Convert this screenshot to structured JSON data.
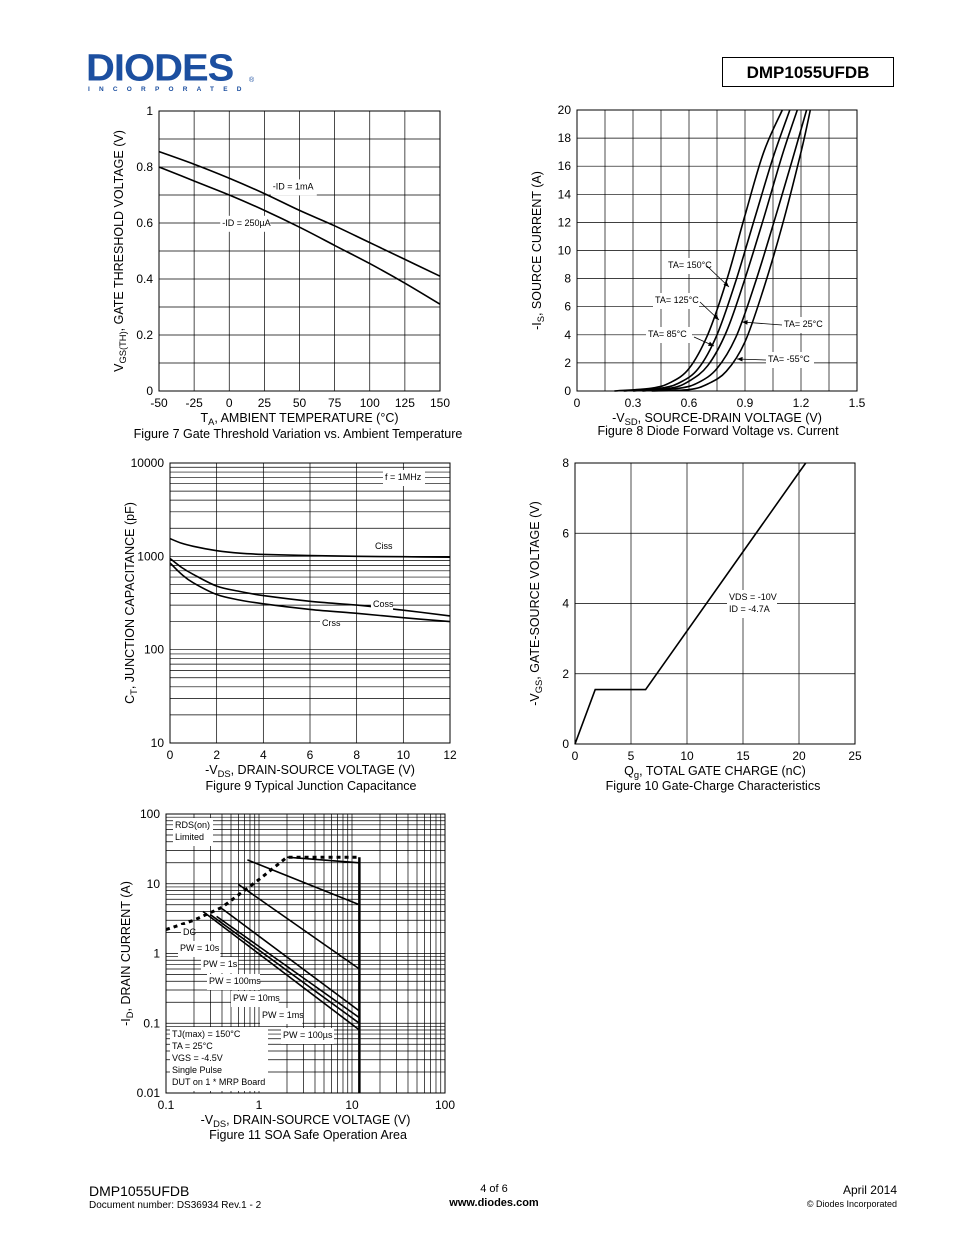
{
  "header": {
    "logo_text": "DIODES",
    "logo_subtitle": "INCORPORATED",
    "logo_reg": "®",
    "part_number": "DMP1055UFDB"
  },
  "footer": {
    "part_number": "DMP1055UFDB",
    "document_number": "Document number: DS36934 Rev.1 - 2",
    "page": "4 of 6",
    "website": "www.diodes.com",
    "date": "April 2014",
    "copyright": "© Diodes Incorporated"
  },
  "figures": {
    "fig7_caption": "Figure 7 Gate Threshold Variation vs. Ambient Temperature",
    "fig8_caption": "Figure 8 Diode Forward Voltage vs. Current",
    "fig9_caption": "Figure 9 Typical Junction Capacitance",
    "fig10_caption": "Figure 10 Gate-Charge Characteristics",
    "fig11_caption": "Figure 11 SOA Safe Operation Area"
  },
  "chart_data": [
    {
      "id": "fig7",
      "type": "line",
      "xlabel": "TA, AMBIENT TEMPERATURE (°C)",
      "ylabel": "VGS(TH), GATE THRESHOLD VOLTAGE (V)",
      "xlim": [
        -50,
        150
      ],
      "ylim": [
        0,
        1
      ],
      "xticks": [
        "-50",
        "-25",
        "0",
        "25",
        "50",
        "75",
        "100",
        "125",
        "150"
      ],
      "yticks": [
        "0",
        "0.2",
        "0.4",
        "0.6",
        "0.8",
        "1"
      ],
      "grid": true,
      "series": [
        {
          "name": "-ID = 1mA",
          "x": [
            -50,
            -25,
            0,
            25,
            50,
            75,
            100,
            125,
            150
          ],
          "y": [
            0.855,
            0.81,
            0.76,
            0.705,
            0.645,
            0.59,
            0.53,
            0.47,
            0.41
          ]
        },
        {
          "name": "-ID = 250µA",
          "x": [
            -50,
            -25,
            0,
            25,
            50,
            75,
            100,
            125,
            150
          ],
          "y": [
            0.8,
            0.75,
            0.7,
            0.645,
            0.585,
            0.52,
            0.455,
            0.385,
            0.31
          ]
        }
      ]
    },
    {
      "id": "fig8",
      "type": "line",
      "xlabel": "-VSD, SOURCE-DRAIN VOLTAGE (V)",
      "ylabel": "-IS, SOURCE CURRENT (A)",
      "xlim": [
        0,
        1.5
      ],
      "ylim": [
        0,
        20
      ],
      "xticks": [
        "0",
        "0.3",
        "0.6",
        "0.9",
        "1.2",
        "1.5"
      ],
      "yticks": [
        "0",
        "2",
        "4",
        "6",
        "8",
        "10",
        "12",
        "14",
        "16",
        "18",
        "20"
      ],
      "grid": true,
      "series": [
        {
          "name": "TA= 150°C",
          "x": [
            0.2,
            0.4,
            0.5,
            0.6,
            0.7,
            0.8,
            0.9,
            1.0,
            1.1
          ],
          "y": [
            0,
            0.2,
            0.6,
            1.6,
            4.0,
            7.8,
            12.5,
            17.0,
            20
          ]
        },
        {
          "name": "TA= 125°C",
          "x": [
            0.25,
            0.45,
            0.55,
            0.65,
            0.75,
            0.85,
            0.95,
            1.05,
            1.14
          ],
          "y": [
            0,
            0.2,
            0.6,
            1.6,
            4.0,
            7.8,
            12.2,
            16.6,
            20
          ]
        },
        {
          "name": "TA= 85°C",
          "x": [
            0.3,
            0.5,
            0.6,
            0.7,
            0.8,
            0.9,
            1.0,
            1.1,
            1.18
          ],
          "y": [
            0,
            0.2,
            0.7,
            1.8,
            4.2,
            8.0,
            12.3,
            16.8,
            20
          ]
        },
        {
          "name": "TA= 25°C",
          "x": [
            0.35,
            0.55,
            0.65,
            0.75,
            0.85,
            0.95,
            1.05,
            1.15,
            1.23
          ],
          "y": [
            0,
            0.2,
            0.6,
            1.6,
            3.8,
            7.5,
            11.8,
            16.3,
            20
          ]
        },
        {
          "name": "TA= -55°C",
          "x": [
            0.4,
            0.6,
            0.7,
            0.8,
            0.9,
            1.0,
            1.1,
            1.2,
            1.25
          ],
          "y": [
            0,
            0.1,
            0.5,
            1.4,
            3.5,
            7.3,
            11.8,
            17.0,
            20
          ]
        }
      ]
    },
    {
      "id": "fig9",
      "type": "line",
      "xlabel": "-VDS, DRAIN-SOURCE VOLTAGE (V)",
      "ylabel": "CT, JUNCTION CAPACITANCE (pF)",
      "xlim": [
        0,
        12
      ],
      "ylim": [
        10,
        10000
      ],
      "yscale": "log",
      "xticks": [
        "0",
        "2",
        "4",
        "6",
        "8",
        "10",
        "12"
      ],
      "yticks": [
        "10",
        "100",
        "1000",
        "10000"
      ],
      "grid": true,
      "annotation": "f = 1MHz",
      "series": [
        {
          "name": "Ciss",
          "x": [
            0,
            0.5,
            1,
            2,
            3,
            4,
            6,
            8,
            10,
            12
          ],
          "y": [
            1550,
            1380,
            1280,
            1150,
            1080,
            1050,
            1020,
            1000,
            990,
            980
          ]
        },
        {
          "name": "Coss",
          "x": [
            0,
            0.5,
            1,
            2,
            3,
            4,
            6,
            8,
            10,
            12
          ],
          "y": [
            950,
            760,
            640,
            480,
            420,
            380,
            330,
            300,
            265,
            230
          ]
        },
        {
          "name": "Crss",
          "x": [
            0,
            0.5,
            1,
            2,
            3,
            4,
            6,
            8,
            10,
            12
          ],
          "y": [
            850,
            640,
            520,
            390,
            340,
            310,
            270,
            245,
            220,
            200
          ]
        }
      ]
    },
    {
      "id": "fig10",
      "type": "line",
      "xlabel": "Qg, TOTAL GATE CHARGE (nC)",
      "ylabel": "-VGS, GATE-SOURCE VOLTAGE (V)",
      "xlim": [
        0,
        25
      ],
      "ylim": [
        0,
        8
      ],
      "xticks": [
        "0",
        "5",
        "10",
        "15",
        "20",
        "25"
      ],
      "yticks": [
        "0",
        "2",
        "4",
        "6",
        "8"
      ],
      "grid": true,
      "annotation": [
        "VDS = -10V",
        "ID = -4.7A"
      ],
      "series": [
        {
          "name": "",
          "x": [
            0,
            1.8,
            6.3,
            20.6
          ],
          "y": [
            0,
            1.55,
            1.55,
            8
          ]
        }
      ]
    },
    {
      "id": "fig11",
      "type": "line",
      "xlabel": "-VDS, DRAIN-SOURCE VOLTAGE (V)",
      "ylabel": "-ID, DRAIN CURRENT (A)",
      "xlim": [
        0.1,
        100
      ],
      "ylim": [
        0.01,
        100
      ],
      "xscale": "log",
      "yscale": "log",
      "xticks": [
        "0.1",
        "1",
        "10",
        "100"
      ],
      "yticks": [
        "0.01",
        "0.1",
        "1",
        "10",
        "100"
      ],
      "grid": true,
      "legend_box_top": [
        "RDS(on)",
        "Limited"
      ],
      "legend_box_bottom": [
        "TJ(max) = 150°C",
        "TA = 25°C",
        "VGS = -4.5V",
        "Single Pulse",
        "DUT on 1 * MRP Board"
      ],
      "series": [
        {
          "name": "RDS(on) Limited",
          "x": [
            0.1,
            0.2,
            0.4,
            1.0,
            2.0,
            12
          ],
          "y": [
            2.2,
            3.0,
            4.6,
            11.5,
            24,
            24
          ]
        },
        {
          "name": "DC",
          "x": [
            0.25,
            12
          ],
          "y": [
            4.0,
            0.08
          ]
        },
        {
          "name": "PW = 10s",
          "x": [
            0.3,
            12
          ],
          "y": [
            3.6,
            0.1
          ]
        },
        {
          "name": "PW = 1s",
          "x": [
            0.35,
            12
          ],
          "y": [
            3.4,
            0.12
          ]
        },
        {
          "name": "PW = 100ms",
          "x": [
            0.4,
            12
          ],
          "y": [
            4.4,
            0.15
          ]
        },
        {
          "name": "PW = 10ms",
          "x": [
            0.6,
            12
          ],
          "y": [
            9.8,
            0.6
          ]
        },
        {
          "name": "PW = 1ms",
          "x": [
            0.75,
            12
          ],
          "y": [
            22,
            5.0
          ]
        },
        {
          "name": "PW = 100µs",
          "x": [
            2.0,
            12
          ],
          "y": [
            24,
            20
          ]
        }
      ]
    }
  ]
}
